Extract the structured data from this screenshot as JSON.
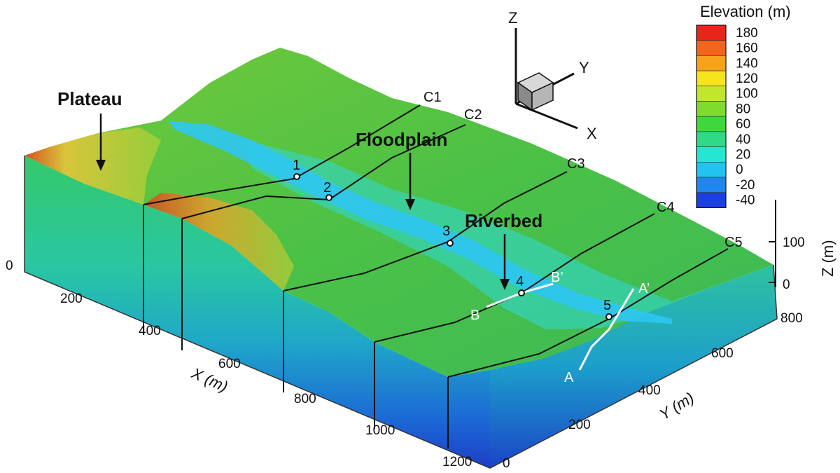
{
  "legend": {
    "title": "Elevation (m)",
    "levels": [
      {
        "value": "180",
        "color": "#e8251b"
      },
      {
        "value": "160",
        "color": "#f4641a"
      },
      {
        "value": "140",
        "color": "#f7a21b"
      },
      {
        "value": "120",
        "color": "#f6e41f"
      },
      {
        "value": "100",
        "color": "#c2e62a"
      },
      {
        "value": "80",
        "color": "#7fdc2c"
      },
      {
        "value": "60",
        "color": "#3ed83a"
      },
      {
        "value": "40",
        "color": "#2fd988"
      },
      {
        "value": "20",
        "color": "#25e6d2"
      },
      {
        "value": "0",
        "color": "#23c3f0"
      },
      {
        "value": "-20",
        "color": "#1f86ee"
      },
      {
        "value": "-40",
        "color": "#1c3fe0"
      }
    ]
  },
  "regions": {
    "plateau": "Plateau",
    "floodplain": "Floodplain",
    "riverbed": "Riverbed"
  },
  "cross_sections": [
    "C1",
    "C2",
    "C3",
    "C4",
    "C5"
  ],
  "wells": [
    "1",
    "2",
    "3",
    "4",
    "5"
  ],
  "profiles": {
    "a_start": "A",
    "a_end": "A’",
    "b_start": "B",
    "b_end": "B’"
  },
  "triad": {
    "z": "Z",
    "y": "Y",
    "x": "X"
  },
  "axes": {
    "x": {
      "title": "X (m)",
      "ticks": [
        "0",
        "200",
        "400",
        "600",
        "800",
        "1000",
        "1200"
      ]
    },
    "y": {
      "title": "Y (m)",
      "ticks": [
        "0",
        "200",
        "400",
        "600",
        "800"
      ]
    },
    "z": {
      "title": "Z (m)",
      "ticks": [
        "0",
        "100"
      ]
    }
  }
}
